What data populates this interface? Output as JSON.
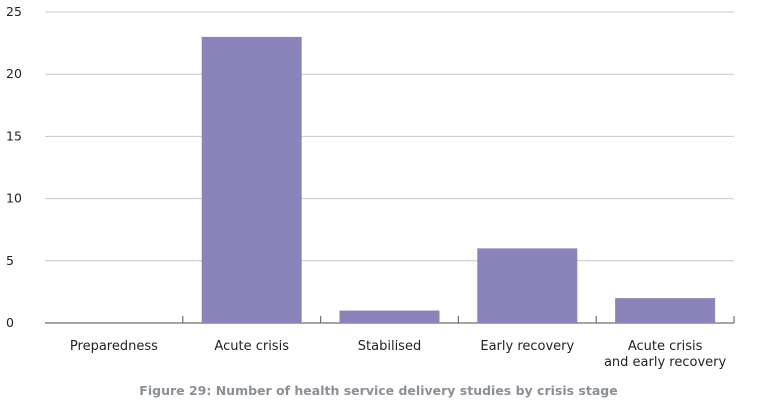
{
  "chart_data": {
    "type": "bar",
    "categories": [
      "Preparedness",
      "Acute crisis",
      "Stabilised",
      "Early recovery",
      "Acute crisis\nand early recovery"
    ],
    "values": [
      0,
      23,
      1,
      6,
      2
    ],
    "title": "",
    "xlabel": "",
    "ylabel": "",
    "ylim": [
      0,
      25
    ],
    "yticks": [
      0,
      5,
      10,
      15,
      20,
      25
    ],
    "grid": true,
    "legend": "none",
    "bar_color": "#8a84bb",
    "grid_color": "#c8c8c8",
    "axis_color": "#707070",
    "text_color": "#231f20"
  },
  "caption": "Figure 29: Number of health service delivery studies by crisis stage"
}
